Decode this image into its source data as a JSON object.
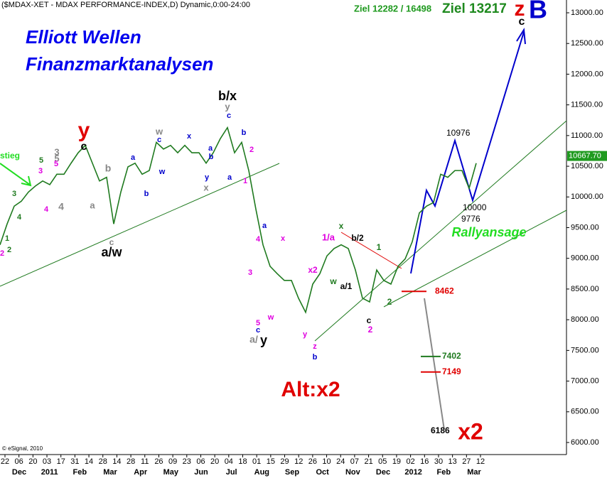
{
  "chart_data": {
    "type": "line",
    "title": "($MDAX-XET - MDAX PERFORMANCE-INDEX,D) Dynamic,0:00-24:00",
    "headline": [
      "Elliott Wellen",
      "Finanzmarktanalysen"
    ],
    "targets": [
      "Ziel 12282 / 16498",
      "Ziel 13217"
    ],
    "copyright": "© eSignal, 2010",
    "series": [
      {
        "name": "MDAX",
        "color": "#1f7a1f",
        "values": [
          9220,
          9560,
          9850,
          9930,
          10080,
          10180,
          10260,
          10200,
          10370,
          10370,
          10550,
          10720,
          10840,
          10550,
          10260,
          10320,
          9560,
          10080,
          10490,
          10550,
          10370,
          10430,
          10890,
          10780,
          10840,
          10720,
          10840,
          10720,
          10720,
          10550,
          10720,
          10950,
          11130,
          10720,
          10890,
          10430,
          9800,
          9220,
          8870,
          8750,
          8640,
          8640,
          8350,
          8120,
          8580,
          8750,
          9040,
          9160,
          9220,
          9160,
          8810,
          8350,
          8290,
          8810,
          8640,
          8580,
          8870,
          8990,
          9270,
          9740,
          9850,
          9910,
          10370,
          10320,
          10430,
          10430,
          10140,
          10550
        ]
      }
    ],
    "ylim": [
      6000,
      13000
    ],
    "yticks": [
      {
        "value": 6000,
        "label": "6000.00"
      },
      {
        "value": 6500,
        "label": "6500.00"
      },
      {
        "value": 7000,
        "label": "7000.00"
      },
      {
        "value": 7500,
        "label": "7500.00"
      },
      {
        "value": 8000,
        "label": "8000.00"
      },
      {
        "value": 8500,
        "label": "8500.00"
      },
      {
        "value": 9000,
        "label": "9000.00"
      },
      {
        "value": 9500,
        "label": "9500.00"
      },
      {
        "value": 10000,
        "label": "10000.00"
      },
      {
        "value": 10500,
        "label": "10500.00"
      },
      {
        "value": 11000,
        "label": "11000.00"
      },
      {
        "value": 11500,
        "label": "11500.00"
      },
      {
        "value": 12000,
        "label": "12000.00"
      },
      {
        "value": 12500,
        "label": "12500.00"
      },
      {
        "value": 13000,
        "label": "13000.00"
      }
    ],
    "last_price": {
      "value": 10667.7,
      "label": "10667.70"
    },
    "xtick_labels": [
      "22",
      "06",
      "20",
      "03",
      "17",
      "31",
      "14",
      "28",
      "14",
      "28",
      "11",
      "26",
      "09",
      "23",
      "06",
      "20",
      "04",
      "18",
      "01",
      "15",
      "29",
      "12",
      "26",
      "10",
      "24",
      "07",
      "21",
      "05",
      "19",
      "02",
      "16",
      "30",
      "13",
      "27",
      "12"
    ],
    "month_labels": [
      "Dec",
      "2011",
      "Feb",
      "Mar",
      "Apr",
      "May",
      "Jun",
      "Jul",
      "Aug",
      "Sep",
      "Oct",
      "Nov",
      "Dec",
      "2012",
      "Feb",
      "Mar"
    ],
    "levels": [
      {
        "value": 8462,
        "color": "#e00000"
      },
      {
        "value": 7402,
        "color": "#1f7a1f"
      },
      {
        "value": 7149,
        "color": "#e00000"
      },
      {
        "value": 6186,
        "color": "#000000"
      }
    ],
    "price_labels": [
      10976,
      10000,
      9776
    ],
    "annotations": [
      {
        "text": "y",
        "color": "#e00000"
      },
      {
        "text": "c",
        "color": "#000000"
      },
      {
        "text": "b/x",
        "color": "#000000"
      },
      {
        "text": "y",
        "color": "#888888"
      },
      {
        "text": "c",
        "color": "#0000cc"
      },
      {
        "text": "a/w",
        "color": "#000000"
      },
      {
        "text": "c",
        "color": "#888888"
      },
      {
        "text": "a/",
        "color": "#888888"
      },
      {
        "text": "y",
        "color": "#000000"
      },
      {
        "text": "5",
        "color": "#e000e0"
      },
      {
        "text": "c",
        "color": "#0000cc"
      },
      {
        "text": "Alt:x2",
        "color": "#e00000"
      },
      {
        "text": "x2",
        "color": "#e00000"
      },
      {
        "text": "z",
        "color": "#e00000"
      },
      {
        "text": "B",
        "color": "#0000cc"
      },
      {
        "text": "c",
        "color": "#000000"
      },
      {
        "text": "Rallyansage",
        "color": "#22dd22"
      },
      {
        "text": "1/a",
        "color": "#e000e0"
      },
      {
        "text": "x",
        "color": "#1f7a1f"
      },
      {
        "text": "b/2",
        "color": "#000000"
      },
      {
        "text": "1",
        "color": "#1f7a1f"
      },
      {
        "text": "x2",
        "color": "#e000e0"
      },
      {
        "text": "w",
        "color": "#1f7a1f"
      },
      {
        "text": "a/1",
        "color": "#000000"
      },
      {
        "text": "2",
        "color": "#1f7a1f"
      },
      {
        "text": "c",
        "color": "#000000"
      },
      {
        "text": "2",
        "color": "#e000e0"
      },
      {
        "text": "z",
        "color": "#e000e0"
      },
      {
        "text": "b",
        "color": "#0000cc"
      },
      {
        "text": "y",
        "color": "#e000e0"
      },
      {
        "text": "w",
        "color": "#e000e0"
      },
      {
        "text": "x",
        "color": "#e000e0"
      },
      {
        "text": "a",
        "color": "#0000cc"
      },
      {
        "text": "3",
        "color": "#e000e0"
      },
      {
        "text": "4",
        "color": "#e000e0"
      },
      {
        "text": "1",
        "color": "#e000e0"
      },
      {
        "text": "2",
        "color": "#e000e0"
      },
      {
        "text": "b",
        "color": "#0000cc"
      },
      {
        "text": "a",
        "color": "#0000cc"
      },
      {
        "text": "y",
        "color": "#0000cc"
      },
      {
        "text": "x",
        "color": "#888888"
      },
      {
        "text": "b",
        "color": "#0000cc"
      },
      {
        "text": "a",
        "color": "#0000cc"
      },
      {
        "text": "x",
        "color": "#0000cc"
      },
      {
        "text": "c",
        "color": "#0000cc"
      },
      {
        "text": "w",
        "color": "#888888"
      },
      {
        "text": "w",
        "color": "#0000cc"
      },
      {
        "text": "a",
        "color": "#0000cc"
      },
      {
        "text": "b",
        "color": "#0000cc"
      },
      {
        "text": "b",
        "color": "#888888"
      },
      {
        "text": "a",
        "color": "#888888"
      },
      {
        "text": "4",
        "color": "#888888"
      },
      {
        "text": "4",
        "color": "#e000e0"
      },
      {
        "text": "3",
        "color": "#e000e0"
      },
      {
        "text": "3",
        "color": "#1f7a1f"
      },
      {
        "text": "4",
        "color": "#1f7a1f"
      },
      {
        "text": "1",
        "color": "#1f7a1f"
      },
      {
        "text": "2",
        "color": "#1f7a1f"
      },
      {
        "text": "2",
        "color": "#e000e0"
      },
      {
        "text": "3",
        "color": "#888888"
      },
      {
        "text": "5",
        "color": "#888888"
      },
      {
        "text": "5",
        "color": "#e000e0"
      },
      {
        "text": "5",
        "color": "#1f7a1f"
      },
      {
        "text": "stieg",
        "color": "#22dd22"
      }
    ]
  }
}
